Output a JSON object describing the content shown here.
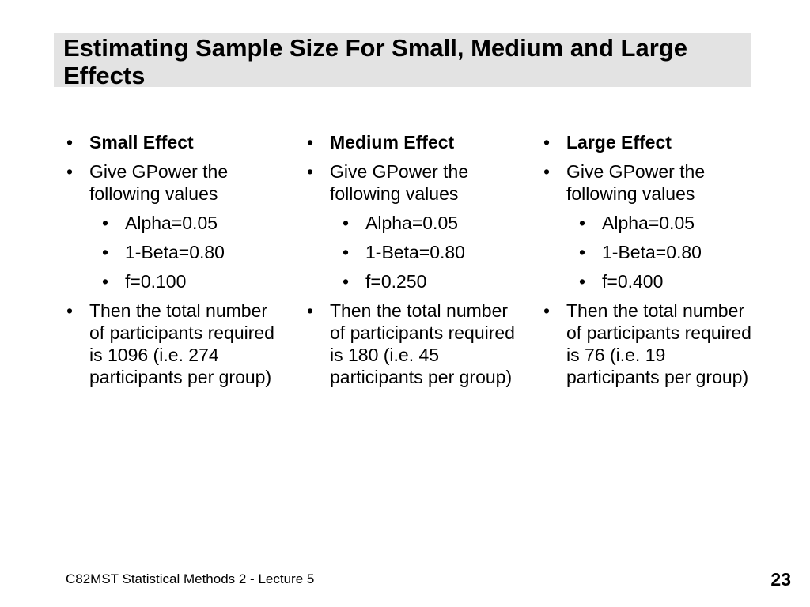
{
  "slide": {
    "title": "Estimating Sample Size For Small, Medium and Large Effects",
    "footer": "C82MST Statistical Methods 2 - Lecture 5",
    "page_number": "23",
    "bullet_glyph": "•",
    "columns": [
      {
        "heading": "Small Effect",
        "instruction": "Give GPower the following values",
        "values": [
          "Alpha=0.05",
          "1-Beta=0.80",
          "f=0.100"
        ],
        "conclusion": "Then the total number of participants required is 1096 (i.e. 274 participants per group)"
      },
      {
        "heading": "Medium Effect",
        "instruction": "Give GPower the following values",
        "values": [
          "Alpha=0.05",
          "1-Beta=0.80",
          "f=0.250"
        ],
        "conclusion": "Then the total number of participants required is 180 (i.e. 45 participants per group)"
      },
      {
        "heading": "Large Effect",
        "instruction": "Give GPower the following values",
        "values": [
          "Alpha=0.05",
          "1-Beta=0.80",
          "f=0.400"
        ],
        "conclusion": "Then the total number of participants required is 76 (i.e. 19 participants per group)"
      }
    ]
  }
}
